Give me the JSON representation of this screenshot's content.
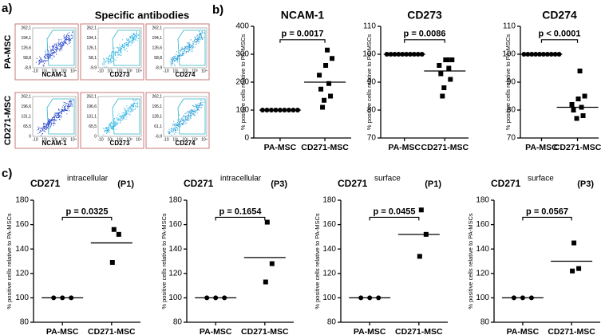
{
  "flow": {
    "label": "a)",
    "title": "Specific antibodies",
    "rows": [
      "PA-MSC",
      "CD271-MSC"
    ],
    "xticks": [
      "-10",
      "10¹",
      "10²",
      "10³",
      "10⁴"
    ],
    "plots": [
      {
        "xlabel": "NCAM-1",
        "yticks": [
          "262,1",
          "194,1",
          "126,6",
          "58,8",
          "-8,9"
        ],
        "color": "#1f3fc8"
      },
      {
        "xlabel": "CD273",
        "yticks": [
          "262,1",
          "194,1",
          "126,1",
          "58,1",
          "-9,9"
        ],
        "color": "#33b5e5"
      },
      {
        "xlabel": "CD274",
        "yticks": [
          "262,1",
          "194,1",
          "126,6",
          "58,8",
          "-8,9"
        ],
        "color": "#2f9fd8"
      },
      {
        "xlabel": "NCAM-1",
        "yticks": [
          "262,1",
          "196,6",
          "131,1",
          "65,5",
          "0"
        ],
        "color": "#1f3fc8"
      },
      {
        "xlabel": "CD273",
        "yticks": [
          "262,1",
          "196,6",
          "131,1",
          "65,5",
          "0"
        ],
        "color": "#33b5e5"
      },
      {
        "xlabel": "CD274",
        "yticks": [
          "262,1",
          "195,1",
          "128,1",
          "61,1",
          "-6,9"
        ],
        "color": "#2f9fd8"
      }
    ]
  },
  "chart_data": [
    {
      "type": "dotplot",
      "panel": "b)",
      "title": "NCAM-1",
      "ylabel": "% positive cells relative to PA-MSCs",
      "categories": [
        "PA-MSC",
        "CD271-MSC"
      ],
      "markers": [
        "circle",
        "square"
      ],
      "color": "#000000",
      "groups": [
        [
          100,
          100,
          100,
          100,
          100,
          100,
          100,
          100,
          100
        ],
        [
          315,
          285,
          260,
          225,
          195,
          175,
          150,
          135,
          110
        ]
      ],
      "lines": [
        100,
        200
      ],
      "annotation": "p = 0.0017",
      "ylim": [
        0,
        400
      ],
      "yticks": [
        0,
        100,
        200,
        300,
        400
      ]
    },
    {
      "type": "dotplot",
      "title": "CD273",
      "ylabel": "% positive cells relative to PA-MSCs",
      "categories": [
        "PA-MSC",
        "CD271-MSC"
      ],
      "markers": [
        "circle",
        "square"
      ],
      "color": "#000000",
      "groups": [
        [
          100,
          100,
          100,
          100,
          100,
          100,
          100,
          100,
          100,
          100
        ],
        [
          98,
          98,
          98,
          96,
          95,
          93,
          91,
          88,
          85
        ]
      ],
      "lines": [
        100,
        94
      ],
      "annotation": "p = 0.0086",
      "ylim": [
        70,
        110
      ],
      "yticks": [
        70,
        80,
        90,
        100,
        110
      ]
    },
    {
      "type": "dotplot",
      "title": "CD274",
      "ylabel": "% positive cells relative to PA-MSCs",
      "categories": [
        "PA-MSC",
        "CD271-MSC"
      ],
      "markers": [
        "circle",
        "square"
      ],
      "color": "#000000",
      "groups": [
        [
          100,
          100,
          100,
          100,
          100,
          100,
          100,
          100,
          100,
          100
        ],
        [
          94,
          85,
          84,
          82,
          81,
          80,
          78,
          77
        ]
      ],
      "lines": [
        100,
        81
      ],
      "annotation": "p < 0.0001",
      "ylim": [
        70,
        110
      ],
      "yticks": [
        70,
        80,
        90,
        100,
        110
      ]
    },
    {
      "type": "dotplot",
      "panel": "c)",
      "title": "CD271",
      "subtitle": "intracellular",
      "tag": "(P1)",
      "ylabel": "% positive cells relative to PA-MSCs",
      "categories": [
        "PA-MSC",
        "CD271-MSC"
      ],
      "markers": [
        "circle",
        "square"
      ],
      "color": "#000000",
      "groups": [
        [
          100,
          100,
          100
        ],
        [
          156,
          152,
          129
        ]
      ],
      "lines": [
        100,
        145
      ],
      "annotation": "p = 0.0325",
      "ylim": [
        80,
        180
      ],
      "yticks": [
        80,
        100,
        120,
        140,
        160,
        180
      ]
    },
    {
      "type": "dotplot",
      "title": "CD271",
      "subtitle": "intracellular",
      "tag": "(P3)",
      "ylabel": "% positive cells relative to PA-MSCs",
      "categories": [
        "PA-MSC",
        "CD271-MSC"
      ],
      "markers": [
        "circle",
        "square"
      ],
      "color": "#000000",
      "groups": [
        [
          100,
          100,
          100
        ],
        [
          162,
          128,
          113
        ]
      ],
      "lines": [
        100,
        133
      ],
      "annotation": "p = 0.1654",
      "ylim": [
        80,
        180
      ],
      "yticks": [
        80,
        100,
        120,
        140,
        160,
        180
      ]
    },
    {
      "type": "dotplot",
      "title": "CD271",
      "subtitle": "surface",
      "tag": "(P1)",
      "ylabel": "% positive cells relative to PA-MSCs",
      "categories": [
        "PA-MSC",
        "CD271-MSC"
      ],
      "markers": [
        "circle",
        "square"
      ],
      "color": "#000000",
      "groups": [
        [
          100,
          100,
          100
        ],
        [
          172,
          152,
          134
        ]
      ],
      "lines": [
        100,
        152
      ],
      "annotation": "p = 0.0455",
      "ylim": [
        80,
        180
      ],
      "yticks": [
        80,
        100,
        120,
        140,
        160,
        180
      ]
    },
    {
      "type": "dotplot",
      "title": "CD271",
      "subtitle": "surface",
      "tag": "(P3)",
      "ylabel": "% positive cells relative to PA-MSCs",
      "categories": [
        "PA-MSC",
        "CD271-MSC"
      ],
      "markers": [
        "circle",
        "square"
      ],
      "color": "#000000",
      "groups": [
        [
          100,
          100,
          100
        ],
        [
          145,
          124,
          122
        ]
      ],
      "lines": [
        100,
        130
      ],
      "annotation": "p = 0.0567",
      "ylim": [
        80,
        180
      ],
      "yticks": [
        80,
        100,
        120,
        140,
        160,
        180
      ]
    }
  ]
}
